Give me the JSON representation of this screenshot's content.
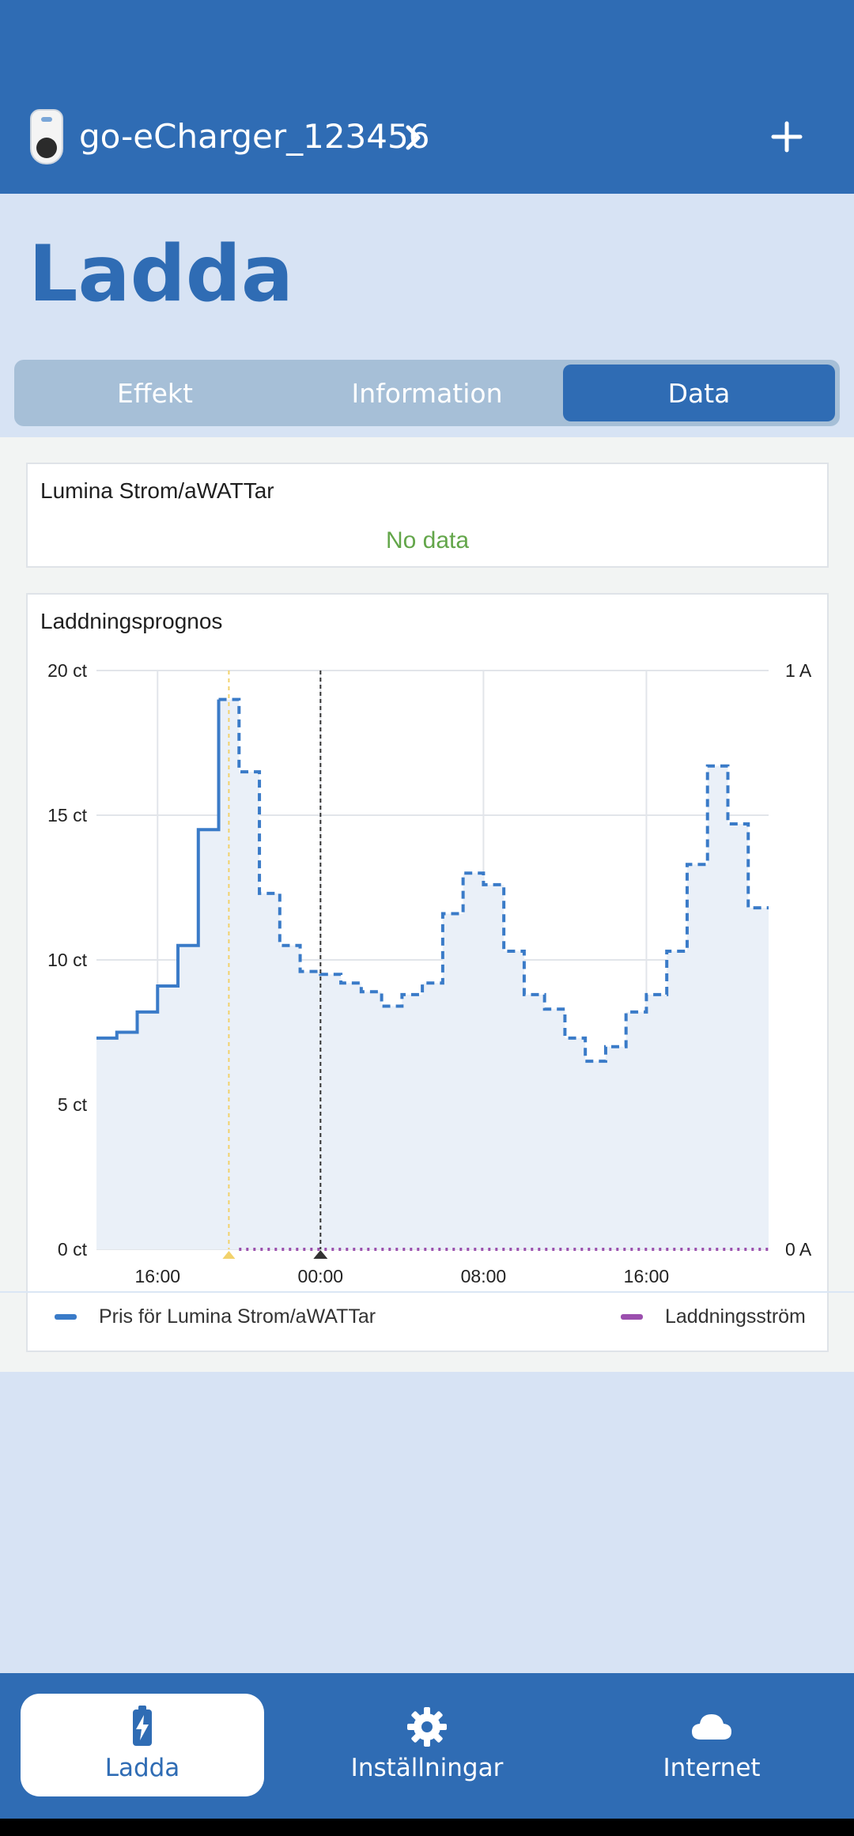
{
  "header": {
    "device_name": "go-eCharger_123456"
  },
  "page": {
    "title": "Ladda"
  },
  "tabs": [
    {
      "label": "Effekt",
      "active": false
    },
    {
      "label": "Information",
      "active": false
    },
    {
      "label": "Data",
      "active": true
    }
  ],
  "cards": {
    "provider": {
      "title": "Lumina Strom/aWATTar",
      "status": "No data"
    },
    "forecast": {
      "title": "Laddningsprognos"
    }
  },
  "chart_data": {
    "type": "line",
    "title": "Laddningsprognos",
    "x_tick_labels": [
      "16:00",
      "00:00",
      "08:00",
      "16:00"
    ],
    "y_left_tick_labels": [
      "20 ct",
      "15 ct",
      "10 ct",
      "5 ct",
      "0 ct"
    ],
    "y_right_tick_labels": [
      "1 A",
      "0 A"
    ],
    "ylim_left": [
      0,
      20
    ],
    "ylim_right": [
      0,
      1
    ],
    "x_unit": "hours after 13:00 (day 1)",
    "grid": true,
    "legend_position": "bottom",
    "markers": [
      {
        "name": "now",
        "x": 6.5,
        "color": "#f2d26b"
      },
      {
        "name": "midnight",
        "x": 11,
        "color": "#333333"
      }
    ],
    "series": [
      {
        "name": "Pris för Lumina Strom/aWATTar",
        "color": "#3a7bc8",
        "step": true,
        "observed_until": 6,
        "points": [
          [
            0,
            7.3
          ],
          [
            1,
            7.5
          ],
          [
            2,
            8.2
          ],
          [
            3,
            9.1
          ],
          [
            4,
            10.5
          ],
          [
            5,
            14.5
          ],
          [
            6,
            19.0
          ],
          [
            7,
            16.5
          ],
          [
            8,
            12.3
          ],
          [
            9,
            10.5
          ],
          [
            10,
            9.6
          ],
          [
            11,
            9.5
          ],
          [
            12,
            9.2
          ],
          [
            13,
            8.9
          ],
          [
            14,
            8.4
          ],
          [
            15,
            8.8
          ],
          [
            16,
            9.2
          ],
          [
            17,
            11.6
          ],
          [
            18,
            13.0
          ],
          [
            19,
            12.6
          ],
          [
            20,
            10.3
          ],
          [
            21,
            8.8
          ],
          [
            22,
            8.3
          ],
          [
            23,
            7.3
          ],
          [
            24,
            6.5
          ],
          [
            25,
            7.0
          ],
          [
            26,
            8.2
          ],
          [
            27,
            8.8
          ],
          [
            28,
            10.3
          ],
          [
            29,
            13.3
          ],
          [
            30,
            16.7
          ],
          [
            31,
            14.7
          ],
          [
            32,
            11.8
          ],
          [
            33,
            11.8
          ]
        ]
      },
      {
        "name": "Laddningsström",
        "color": "#9b4fae",
        "axis": "right",
        "points": [
          [
            7,
            0
          ],
          [
            33,
            0
          ]
        ]
      }
    ]
  },
  "legend": [
    {
      "label": "Pris för Lumina Strom/aWATTar",
      "color": "#3a7bc8"
    },
    {
      "label": "Laddningsström",
      "color": "#9b4fae"
    }
  ],
  "bottom_nav": [
    {
      "label": "Ladda",
      "icon": "battery-charging-icon",
      "active": true
    },
    {
      "label": "Inställningar",
      "icon": "gear-icon",
      "active": false
    },
    {
      "label": "Internet",
      "icon": "cloud-icon",
      "active": false
    }
  ]
}
